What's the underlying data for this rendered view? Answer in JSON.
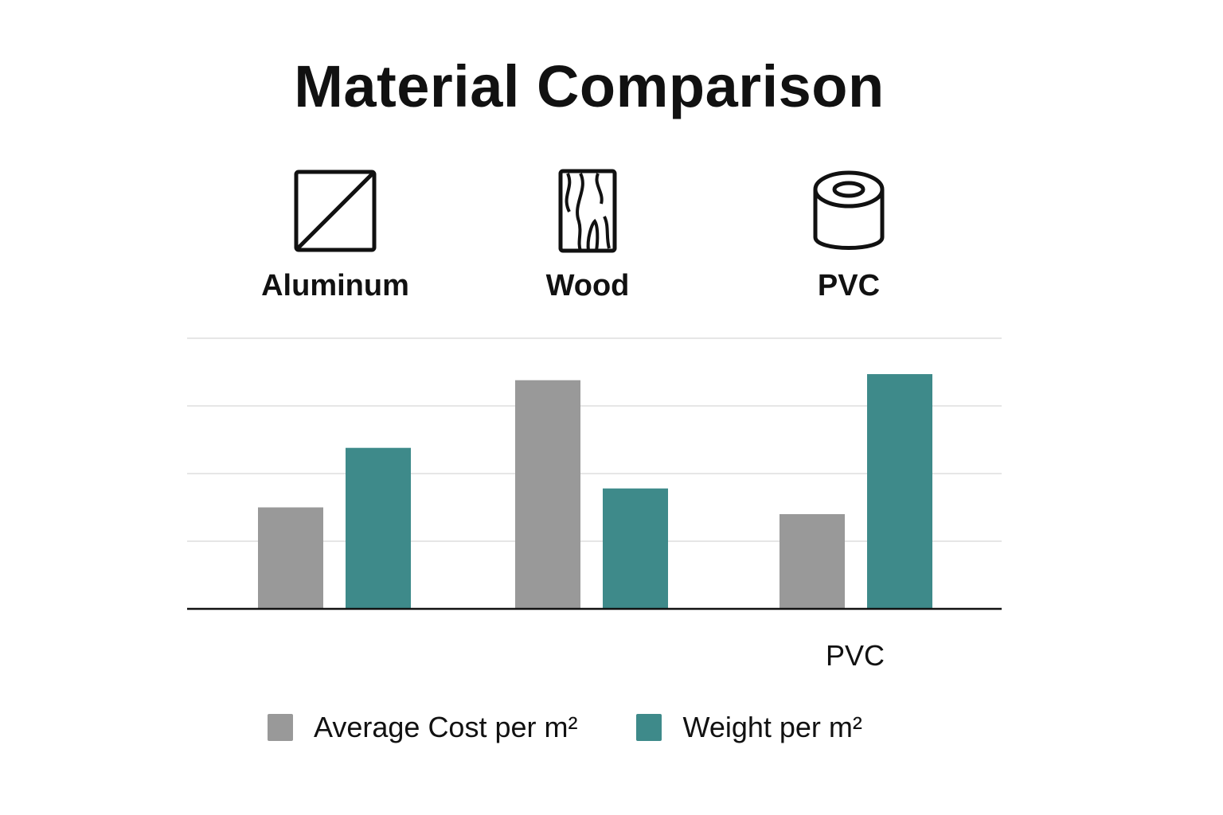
{
  "title": "Material Comparison",
  "materials": [
    {
      "name": "Aluminum",
      "icon": "aluminum-profile-icon"
    },
    {
      "name": "Wood",
      "icon": "wood-grain-icon"
    },
    {
      "name": "PVC",
      "icon": "pvc-roll-icon"
    }
  ],
  "chart_data": {
    "type": "bar",
    "title": "Material Comparison",
    "categories": [
      "Aluminum",
      "Wood",
      "PVC"
    ],
    "x_tick_labels": [
      "",
      "",
      "PVC"
    ],
    "series": [
      {
        "name": "Average Cost per m²",
        "values": [
          1.5,
          3.38,
          1.4
        ],
        "color": "#999999"
      },
      {
        "name": "Weight per m²",
        "values": [
          2.38,
          1.78,
          3.47
        ],
        "color": "#3e8a8a"
      }
    ],
    "ylim": [
      0,
      4
    ],
    "grid": true,
    "legend_position": "bottom"
  }
}
